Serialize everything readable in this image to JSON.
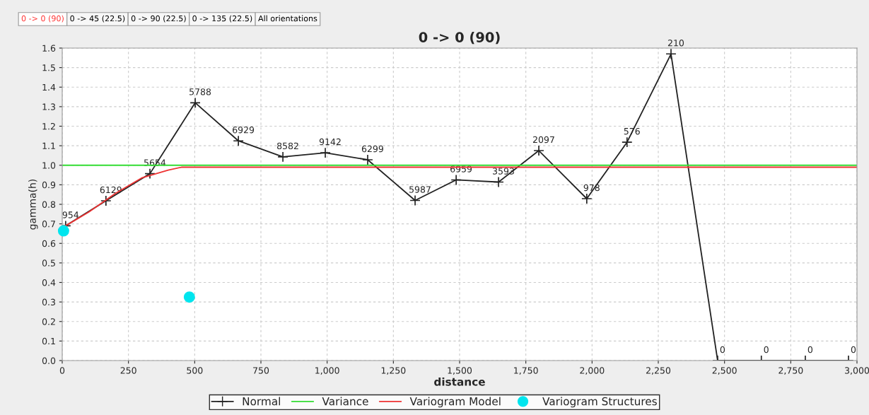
{
  "chart_data": {
    "type": "line",
    "title": "0 -> 0 (90)",
    "xlabel": "distance",
    "ylabel": "gamma(h)",
    "annotations": [
      "0 -> 0 (90)",
      "0 -> 45 (22.5)",
      "0 -> 90 (22.5)",
      "0 -> 135 (22.5)",
      "All orientations",
      {
        "text": "954",
        "x": 13,
        "y": 0.69
      },
      {
        "text": "6129",
        "x": 165,
        "y": 0.818
      },
      {
        "text": "5654",
        "x": 331,
        "y": 0.957
      },
      {
        "text": "5788",
        "x": 502,
        "y": 1.32
      },
      {
        "text": "6929",
        "x": 665,
        "y": 1.125
      },
      {
        "text": "8582",
        "x": 833,
        "y": 1.043
      },
      {
        "text": "9142",
        "x": 993,
        "y": 1.064
      },
      {
        "text": "6299",
        "x": 1153,
        "y": 1.028
      },
      {
        "text": "5987",
        "x": 1332,
        "y": 0.82
      },
      {
        "text": "6959",
        "x": 1487,
        "y": 0.925
      },
      {
        "text": "3593",
        "x": 1647,
        "y": 0.914
      },
      {
        "text": "2097",
        "x": 1799,
        "y": 1.075
      },
      {
        "text": "978",
        "x": 1980,
        "y": 0.829
      },
      {
        "text": "576",
        "x": 2132,
        "y": 1.118
      },
      {
        "text": "210",
        "x": 2298,
        "y": 1.57
      },
      {
        "text": "0",
        "x": 2474,
        "y": 0
      },
      {
        "text": "0",
        "x": 2639,
        "y": 0
      },
      {
        "text": "0",
        "x": 2805,
        "y": 0
      },
      {
        "text": "0",
        "x": 2968,
        "y": 0
      }
    ],
    "series": [
      {
        "name": "Normal",
        "color": "#222222",
        "marker": "cross",
        "x": [
          13,
          165,
          331,
          502,
          665,
          833,
          993,
          1153,
          1332,
          1487,
          1647,
          1799,
          1980,
          2132,
          2298,
          2474,
          2639,
          2805,
          2968
        ],
        "values": [
          0.69,
          0.818,
          0.957,
          1.32,
          1.125,
          1.043,
          1.064,
          1.028,
          0.82,
          0.925,
          0.914,
          1.075,
          0.829,
          1.118,
          1.57,
          0,
          0,
          0,
          0
        ]
      },
      {
        "name": "Variance",
        "color": "#33dd33",
        "x": [
          0,
          3000
        ],
        "values": [
          1.0,
          1.0
        ]
      },
      {
        "name": "Variogram Model",
        "color": "#ee3333",
        "x": [
          0,
          100,
          200,
          300,
          400,
          450,
          3000
        ],
        "values": [
          0.68,
          0.76,
          0.855,
          0.935,
          0.975,
          0.99,
          0.99
        ]
      },
      {
        "name": "Variogram Structures",
        "color": "#00e5ee",
        "type": "scatter",
        "marker": "circle",
        "x": [
          5,
          480
        ],
        "values": [
          0.664,
          0.325
        ]
      }
    ],
    "xlim": [
      0,
      3000
    ],
    "xticks": [
      0,
      250,
      500,
      750,
      {
        "value": 1000,
        "label": "1,000"
      },
      {
        "value": 1250,
        "label": "1,250"
      },
      {
        "value": 1500,
        "label": "1,500"
      },
      {
        "value": 1750,
        "label": "1,750"
      },
      {
        "value": 2000,
        "label": "2,000"
      },
      {
        "value": 2250,
        "label": "2,250"
      },
      {
        "value": 2500,
        "label": "2,500"
      },
      {
        "value": 2750,
        "label": "2,750"
      },
      {
        "value": 3000,
        "label": "3,000"
      }
    ],
    "ylim": [
      0,
      1.6
    ],
    "yticks": [
      {
        "value": 0,
        "label": "0.0"
      },
      {
        "value": 0.1,
        "label": "0.1"
      },
      {
        "value": 0.2,
        "label": "0.2"
      },
      {
        "value": 0.3,
        "label": "0.3"
      },
      {
        "value": 0.4,
        "label": "0.4"
      },
      {
        "value": 0.5,
        "label": "0.5"
      },
      {
        "value": 0.6,
        "label": "0.6"
      },
      {
        "value": 0.7,
        "label": "0.7"
      },
      {
        "value": 0.8,
        "label": "0.8"
      },
      {
        "value": 0.9,
        "label": "0.9"
      },
      {
        "value": 1.0,
        "label": "1.0"
      },
      {
        "value": 1.1,
        "label": "1.1"
      },
      {
        "value": 1.2,
        "label": "1.2"
      },
      {
        "value": 1.3,
        "label": "1.3"
      },
      {
        "value": 1.4,
        "label": "1.4"
      },
      {
        "value": 1.5,
        "label": "1.5"
      },
      {
        "value": 1.6,
        "label": "1.6"
      }
    ],
    "grid": true,
    "legend": "bottom"
  }
}
